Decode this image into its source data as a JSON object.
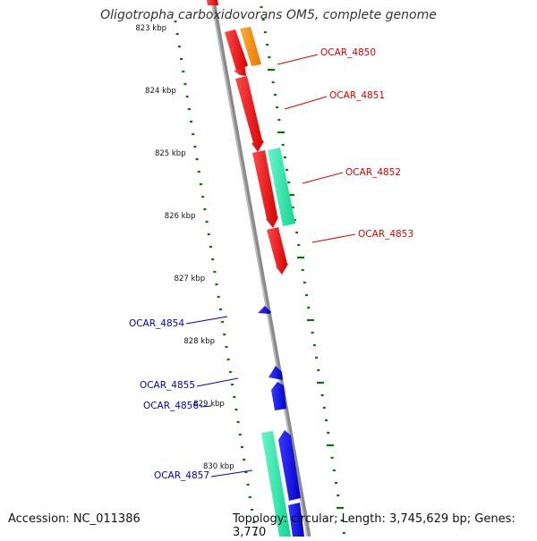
{
  "title": "Oligotropha carboxidovorans OM5, complete genome",
  "accession": "Accession: NC_011386",
  "summary": "Topology: circular; Length: 3,745,629 bp; Genes: 3,770",
  "kbp_labels": [
    "823 kbp",
    "824 kbp",
    "825 kbp",
    "826 kbp",
    "827 kbp",
    "828 kbp",
    "829 kbp",
    "830 kbp"
  ],
  "genes": [
    {
      "label": "OCAR_4850",
      "strand": "forward",
      "color": "#dd0000"
    },
    {
      "label": "OCAR_4851",
      "strand": "forward",
      "color": "#dd0000"
    },
    {
      "label": "OCAR_4852",
      "strand": "forward",
      "color": "#dd0000"
    },
    {
      "label": "OCAR_4853",
      "strand": "forward",
      "color": "#dd0000"
    },
    {
      "label": "OCAR_4854",
      "strand": "reverse",
      "color": "#0000cc"
    },
    {
      "label": "OCAR_4855",
      "strand": "reverse",
      "color": "#0000cc"
    },
    {
      "label": "OCAR_4856",
      "strand": "reverse",
      "color": "#0000cc"
    },
    {
      "label": "OCAR_4857",
      "strand": "reverse",
      "color": "#0000cc"
    }
  ],
  "colors": {
    "forward_cds": "#ff1a1a",
    "reverse_cds": "#0a0ae0",
    "rna": "#1ee8a6",
    "orange_feature": "#ff8c00",
    "backbone": "#8a8a8a",
    "ticks": "#007700"
  }
}
